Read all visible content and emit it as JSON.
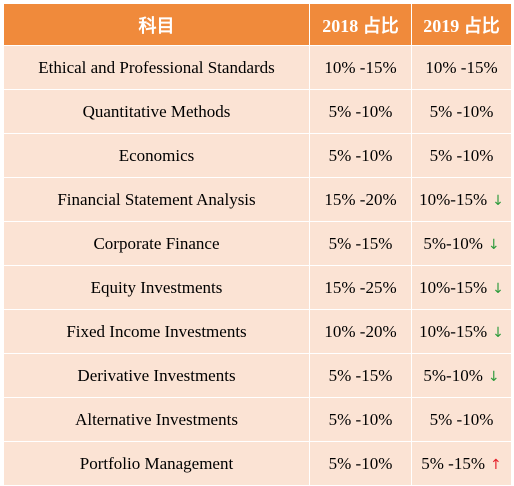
{
  "table": {
    "headers": [
      "科目",
      "2018 占比",
      "2019 占比"
    ],
    "rows": [
      {
        "subject": "Ethical and Professional Standards",
        "y2018": "10% -15%",
        "y2019": "10% -15%",
        "trend": ""
      },
      {
        "subject": "Quantitative Methods",
        "y2018": "5% -10%",
        "y2019": "5% -10%",
        "trend": ""
      },
      {
        "subject": "Economics",
        "y2018": "5% -10%",
        "y2019": "5% -10%",
        "trend": ""
      },
      {
        "subject": "Financial Statement Analysis",
        "y2018": "15% -20%",
        "y2019": "10%-15%",
        "trend": "down"
      },
      {
        "subject": "Corporate Finance",
        "y2018": "5% -15%",
        "y2019": "5%-10%",
        "trend": "down"
      },
      {
        "subject": "Equity Investments",
        "y2018": "15% -25%",
        "y2019": "10%-15%",
        "trend": "down"
      },
      {
        "subject": "Fixed Income Investments",
        "y2018": "10% -20%",
        "y2019": "10%-15%",
        "trend": "down"
      },
      {
        "subject": "Derivative Investments",
        "y2018": "5% -15%",
        "y2019": "5%-10%",
        "trend": "down"
      },
      {
        "subject": "Alternative Investments",
        "y2018": "5% -10%",
        "y2019": "5% -10%",
        "trend": ""
      },
      {
        "subject": "Portfolio Management",
        "y2018": "5% -10%",
        "y2019": "5% -15%",
        "trend": "up"
      }
    ]
  },
  "colors": {
    "header_bg": "#f08a3b",
    "row_bg": "#fbe3d4",
    "arrow_down": "#2e9b3c",
    "arrow_up": "#e4202a"
  }
}
